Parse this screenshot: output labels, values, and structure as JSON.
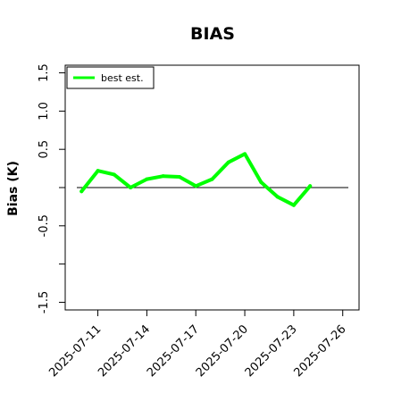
{
  "chart_data": {
    "type": "line",
    "title": "BIAS",
    "xlabel": "",
    "ylabel": "Bias (K)",
    "ylim": [
      -1.6,
      1.6
    ],
    "yticks": [
      -1.5,
      -1.0,
      -0.5,
      0.0,
      0.5,
      1.0,
      1.5
    ],
    "ytick_labels": [
      "-1.5",
      "",
      "-0.5",
      "",
      "0.5",
      "1.0",
      "1.5"
    ],
    "xlim": [
      "2025-07-09",
      "2025-07-27"
    ],
    "xtick_labels": [
      "2025-07-11",
      "2025-07-14",
      "2025-07-17",
      "2025-07-20",
      "2025-07-23",
      "2025-07-26"
    ],
    "reference_line": 0,
    "grid": false,
    "legend": {
      "position": "top-left",
      "entries": [
        "best est."
      ]
    },
    "series": [
      {
        "name": "best est.",
        "color": "#00ff00",
        "x": [
          "2025-07-10",
          "2025-07-11",
          "2025-07-12",
          "2025-07-13",
          "2025-07-14",
          "2025-07-15",
          "2025-07-16",
          "2025-07-17",
          "2025-07-18",
          "2025-07-19",
          "2025-07-20",
          "2025-07-21",
          "2025-07-22",
          "2025-07-23",
          "2025-07-24"
        ],
        "y": [
          -0.05,
          0.22,
          0.17,
          0.0,
          0.11,
          0.15,
          0.14,
          0.02,
          0.11,
          0.33,
          0.44,
          0.07,
          -0.12,
          -0.23,
          0.02
        ]
      }
    ]
  }
}
